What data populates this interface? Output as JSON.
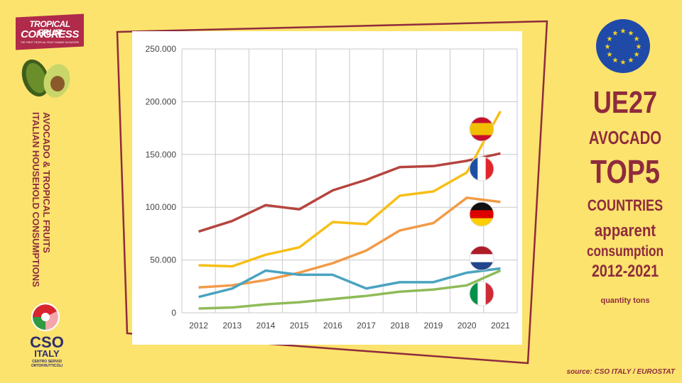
{
  "logo_tfc": {
    "line1": "TROPICAL FRUIT",
    "line2": "CONGRESS",
    "tagline": "THE FIRST TROPICAL FRUIT SUMMIT IN EUROPE"
  },
  "vertical_title": {
    "line1": "AVOCADO & TROPICAL FRUITS",
    "line2": "ITALIAN HOUSEHOLD  CONSUMPTIONS"
  },
  "logo_cso": {
    "name": "CSO",
    "country": "ITALY",
    "subtitle_1": "CENTRO SERVIZI",
    "subtitle_2": "ORTOFRUTTICOLI"
  },
  "right_panel": {
    "line1": "UE27",
    "line2": "AVOCADO",
    "line3": "TOP5",
    "line4": "COUNTRIES",
    "line5": "apparent",
    "line6": "consumption",
    "line7": "2012-2021",
    "unit_note": "quantity tons"
  },
  "source": "source: CSO ITALY / EUROSTAT",
  "colors": {
    "background": "#fbe36d",
    "title": "#8f2b3d",
    "frame_line": "#8f2b3d"
  },
  "icons": [
    "avocado-icon",
    "eu-flag-icon",
    "cso-logo-icon",
    "spain-flag-icon",
    "france-flag-icon",
    "germany-flag-icon",
    "netherlands-flag-icon",
    "italy-flag-icon"
  ],
  "chart_data": {
    "type": "line",
    "x": [
      "2012",
      "2013",
      "2014",
      "2015",
      "2016",
      "2017",
      "2018",
      "2019",
      "2020",
      "2021"
    ],
    "y_ticks": [
      "0",
      "50.000",
      "100.000",
      "150.000",
      "200.000",
      "250.000"
    ],
    "ylim": [
      0,
      250000
    ],
    "grid": true,
    "legend": "flags at line ends",
    "series": [
      {
        "flag": "France",
        "color": "#b5443f",
        "values": [
          77000,
          87000,
          102000,
          98000,
          116000,
          126000,
          138000,
          139000,
          144000,
          151000
        ]
      },
      {
        "flag": "Spain",
        "color": "#f6bf16",
        "values": [
          45000,
          44000,
          55000,
          62000,
          86000,
          84000,
          111000,
          115000,
          133000,
          191000
        ]
      },
      {
        "flag": "Germany",
        "color": "#f29a48",
        "values": [
          24000,
          26000,
          31000,
          38000,
          47000,
          59000,
          78000,
          85000,
          109000,
          105000
        ]
      },
      {
        "flag": "Netherlands",
        "color": "#4aa3c1",
        "values": [
          15000,
          23000,
          40000,
          36000,
          36000,
          23000,
          29000,
          29000,
          38000,
          42000
        ]
      },
      {
        "flag": "Italy",
        "color": "#8fbb57",
        "values": [
          4000,
          5000,
          8000,
          10000,
          13000,
          16000,
          20000,
          22000,
          26000,
          40000
        ]
      }
    ]
  }
}
